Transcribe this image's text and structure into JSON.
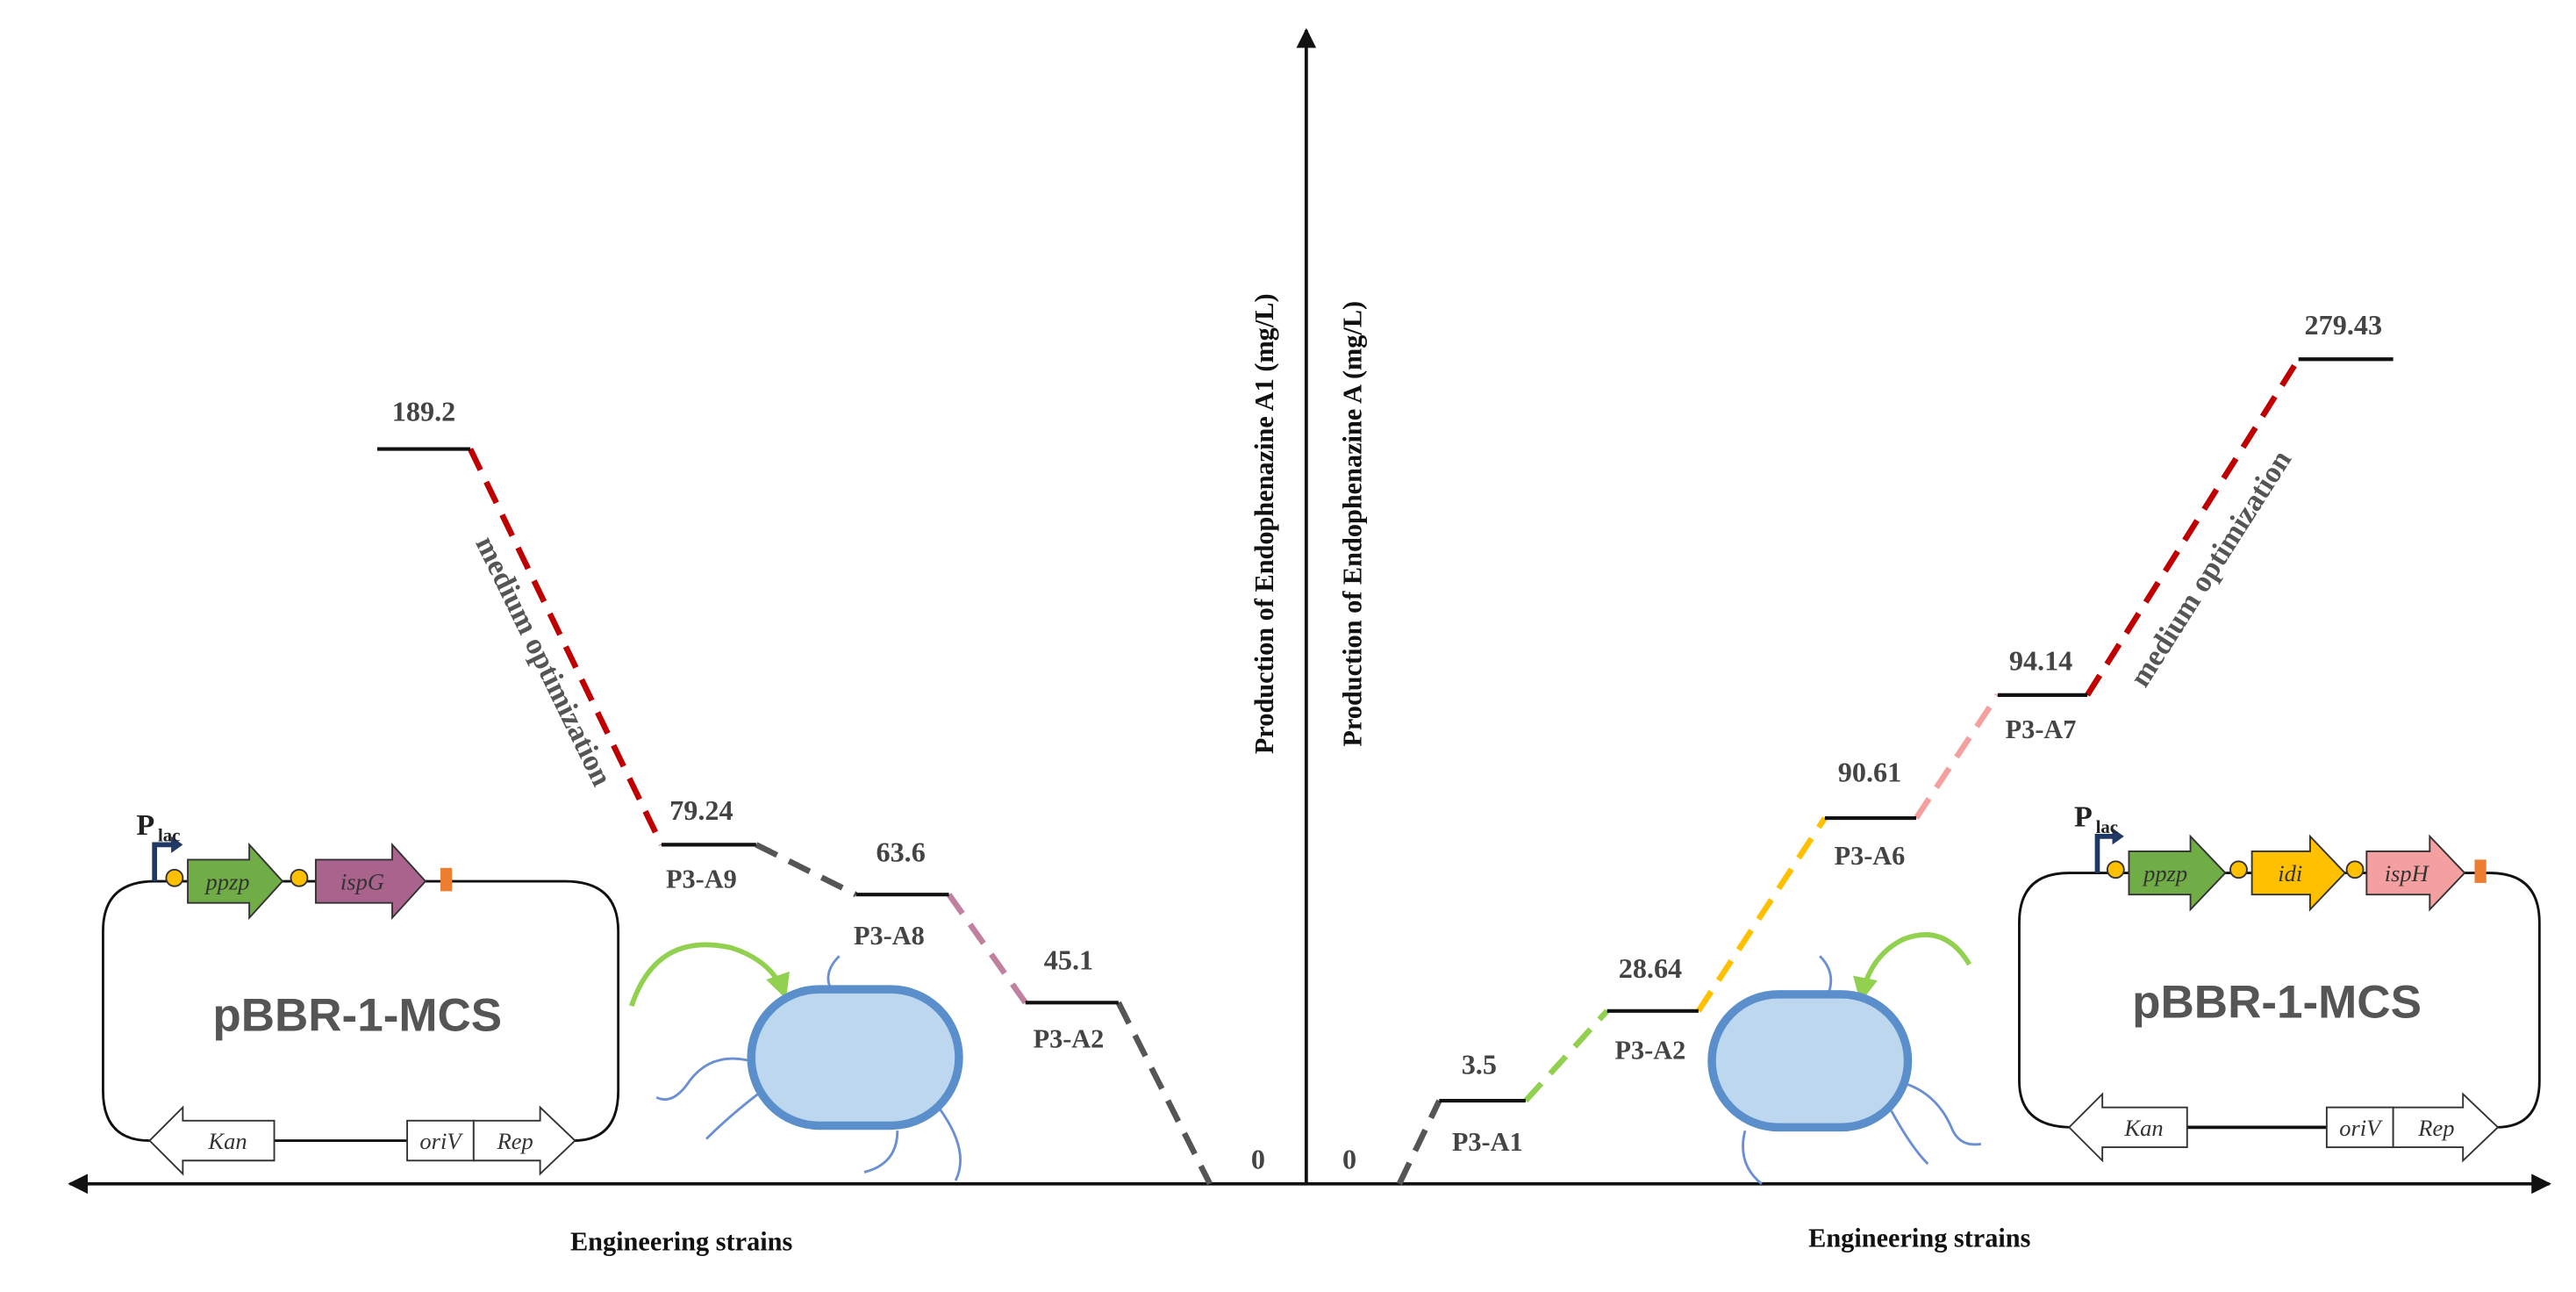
{
  "left": {
    "y_axis_label": "Production of  Endophenazine A1 (mg/L)",
    "x_axis_label": "Engineering strains",
    "annotation": "medium optimization",
    "steps": [
      {
        "value": "189.2"
      },
      {
        "value": "79.24",
        "strain": "P3-A9"
      },
      {
        "value": "63.6",
        "strain": "P3-A8"
      },
      {
        "value": "45.1",
        "strain": "P3-A2"
      },
      {
        "value": "0"
      }
    ],
    "plasmid": {
      "promoter": "P",
      "promoter_sub": "lac",
      "genes": [
        "ppzp",
        "ispG"
      ],
      "name": "pBBR-1-MCS",
      "markers": [
        "Kan",
        "oriV",
        "Rep"
      ]
    }
  },
  "right": {
    "y_axis_label": "Production of  Endophenazine A (mg/L)",
    "x_axis_label": "Engineering strains",
    "annotation": "medium optimization",
    "steps": [
      {
        "value": "0"
      },
      {
        "value": "3.5",
        "strain": "P3-A1"
      },
      {
        "value": "28.64",
        "strain": "P3-A2"
      },
      {
        "value": "90.61",
        "strain": "P3-A6"
      },
      {
        "value": "94.14",
        "strain": "P3-A7"
      },
      {
        "value": "279.43"
      }
    ],
    "plasmid": {
      "promoter": "P",
      "promoter_sub": "lac",
      "genes": [
        "ppzp",
        "idi",
        "ispH"
      ],
      "name": "pBBR-1-MCS",
      "markers": [
        "Kan",
        "oriV",
        "Rep"
      ]
    }
  }
}
